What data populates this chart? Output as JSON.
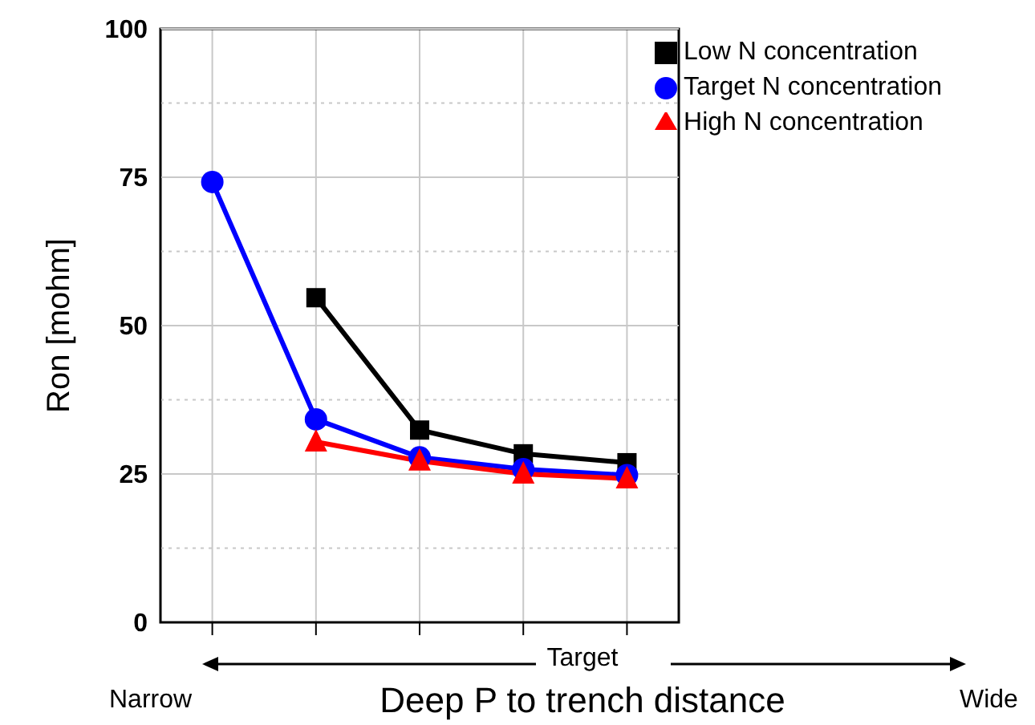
{
  "chart_data": {
    "type": "line",
    "xlabel": "Deep P to trench distance",
    "ylabel": "Ron [mohm]",
    "annotations": [
      "Target",
      "Narrow",
      "Wide"
    ],
    "categories": [
      null,
      null,
      null,
      null,
      null
    ],
    "series": [
      {
        "name": "Low N concentration",
        "color": "#000000",
        "marker": "square",
        "values": [
          null,
          54.7,
          32.4,
          28.4,
          26.9
        ]
      },
      {
        "name": "Target N concentration",
        "color": "#0000ff",
        "marker": "circle",
        "values": [
          74.2,
          34.2,
          27.8,
          25.8,
          24.8
        ]
      },
      {
        "name": "High N concentration",
        "color": "#ff0000",
        "marker": "triangle",
        "values": [
          null,
          30.4,
          27.2,
          25.0,
          24.2
        ]
      }
    ],
    "ylim": [
      0,
      100
    ],
    "yticks": [
      0,
      {
        "value": 12.5,
        "label": null
      },
      25,
      {
        "value": 37.5,
        "label": null
      },
      50,
      {
        "value": 62.5,
        "label": null
      },
      75,
      {
        "value": 87.5,
        "label": null
      },
      100
    ],
    "grid": true,
    "legend": "top right",
    "line_style": "solid"
  }
}
